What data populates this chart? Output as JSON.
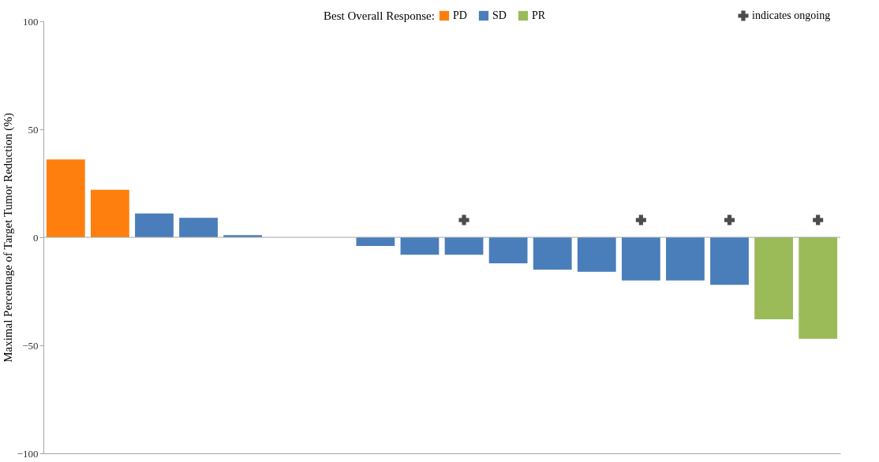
{
  "chart_data": {
    "type": "bar",
    "ylabel": "Maximal Percentage of Target Tumor Reduction (%)",
    "legend_title": "Best Overall Response:",
    "legend": "top",
    "tick_labels": "y",
    "grid": false,
    "categories": [
      null,
      null,
      null,
      null,
      null,
      null,
      null,
      null,
      null,
      null,
      null,
      null,
      null,
      null,
      null,
      null,
      null,
      null
    ],
    "ylim": [
      -100,
      100
    ],
    "yticks": [
      -100,
      -50,
      0,
      50,
      100
    ],
    "ref_lines": [
      {
        "axis": "y",
        "value": 0,
        "color": "#a6a6a6"
      }
    ],
    "series": [
      {
        "name": "PD",
        "color": "#ff7f0e",
        "values": [
          36,
          22,
          null,
          null,
          null,
          null,
          null,
          null,
          null,
          null,
          null,
          null,
          null,
          null,
          null,
          null,
          null,
          null
        ]
      },
      {
        "name": "SD",
        "color": "#4a7ebb",
        "values": [
          null,
          null,
          11,
          9,
          1,
          0,
          0,
          -4,
          -8,
          -8,
          -12,
          -15,
          -16,
          -20,
          -20,
          -22,
          null,
          null
        ]
      },
      {
        "name": "PR",
        "color": "#9bbb59",
        "values": [
          null,
          null,
          null,
          null,
          null,
          null,
          null,
          null,
          null,
          null,
          null,
          null,
          null,
          null,
          null,
          null,
          -38,
          -47
        ]
      },
      {
        "name": "indicates ongoing",
        "type": "scatter",
        "marker": "cross",
        "color": "#000000",
        "values": [
          null,
          null,
          null,
          null,
          null,
          null,
          null,
          null,
          null,
          8,
          null,
          null,
          null,
          8,
          null,
          8,
          null,
          8
        ]
      }
    ]
  }
}
